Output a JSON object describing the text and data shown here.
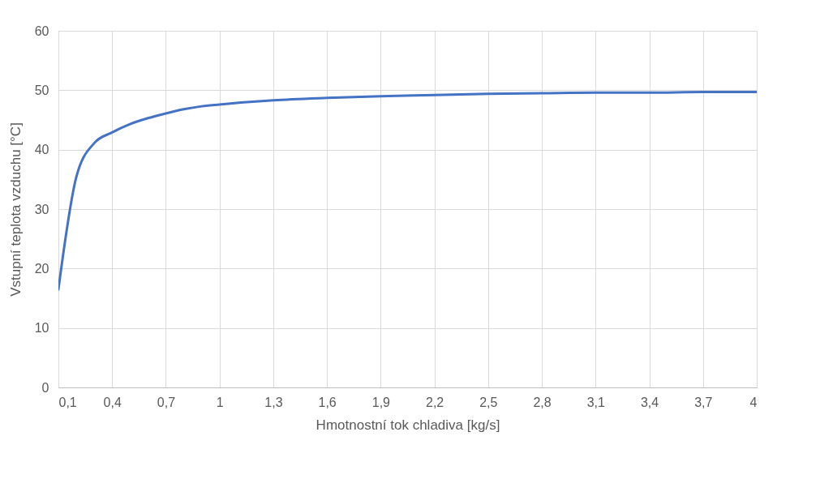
{
  "chart_data": {
    "type": "line",
    "xlabel": "Hmotnostní tok chladiva [kg/s]",
    "ylabel": "Vstupní teplota vzduchu [°C]",
    "x": [
      0.1,
      0.2,
      0.3,
      0.4,
      0.5,
      0.6,
      0.7,
      0.8,
      0.9,
      1.0,
      1.3,
      1.6,
      1.9,
      2.2,
      2.5,
      2.8,
      3.1,
      3.4,
      3.7,
      4.0
    ],
    "series": [
      {
        "color": "#4472c4",
        "values": [
          16.5,
          35.4,
          41.1,
          42.9,
          44.3,
          45.3,
          46.1,
          46.8,
          47.3,
          47.6,
          48.3,
          48.7,
          49.0,
          49.2,
          49.4,
          49.5,
          49.6,
          49.6,
          49.7,
          49.7
        ]
      }
    ],
    "xlim": [
      0.1,
      4
    ],
    "xticks": [
      {
        "value": 0.1,
        "label": "0,1"
      },
      {
        "value": 0.4,
        "label": "0,4"
      },
      {
        "value": 0.7,
        "label": "0,7"
      },
      {
        "value": 1,
        "label": "1"
      },
      {
        "value": 1.3,
        "label": "1,3"
      },
      {
        "value": 1.6,
        "label": "1,6"
      },
      {
        "value": 1.9,
        "label": "1,9"
      },
      {
        "value": 2.2,
        "label": "2,2"
      },
      {
        "value": 2.5,
        "label": "2,5"
      },
      {
        "value": 2.8,
        "label": "2,8"
      },
      {
        "value": 3.1,
        "label": "3,1"
      },
      {
        "value": 3.4,
        "label": "3,4"
      },
      {
        "value": 3.7,
        "label": "3,7"
      },
      {
        "value": 4,
        "label": "4"
      }
    ],
    "ylim": [
      0,
      60
    ],
    "yticks": [
      0,
      10,
      20,
      30,
      40,
      50,
      60
    ],
    "grid": true,
    "marker": "none",
    "line_style": "solid"
  }
}
